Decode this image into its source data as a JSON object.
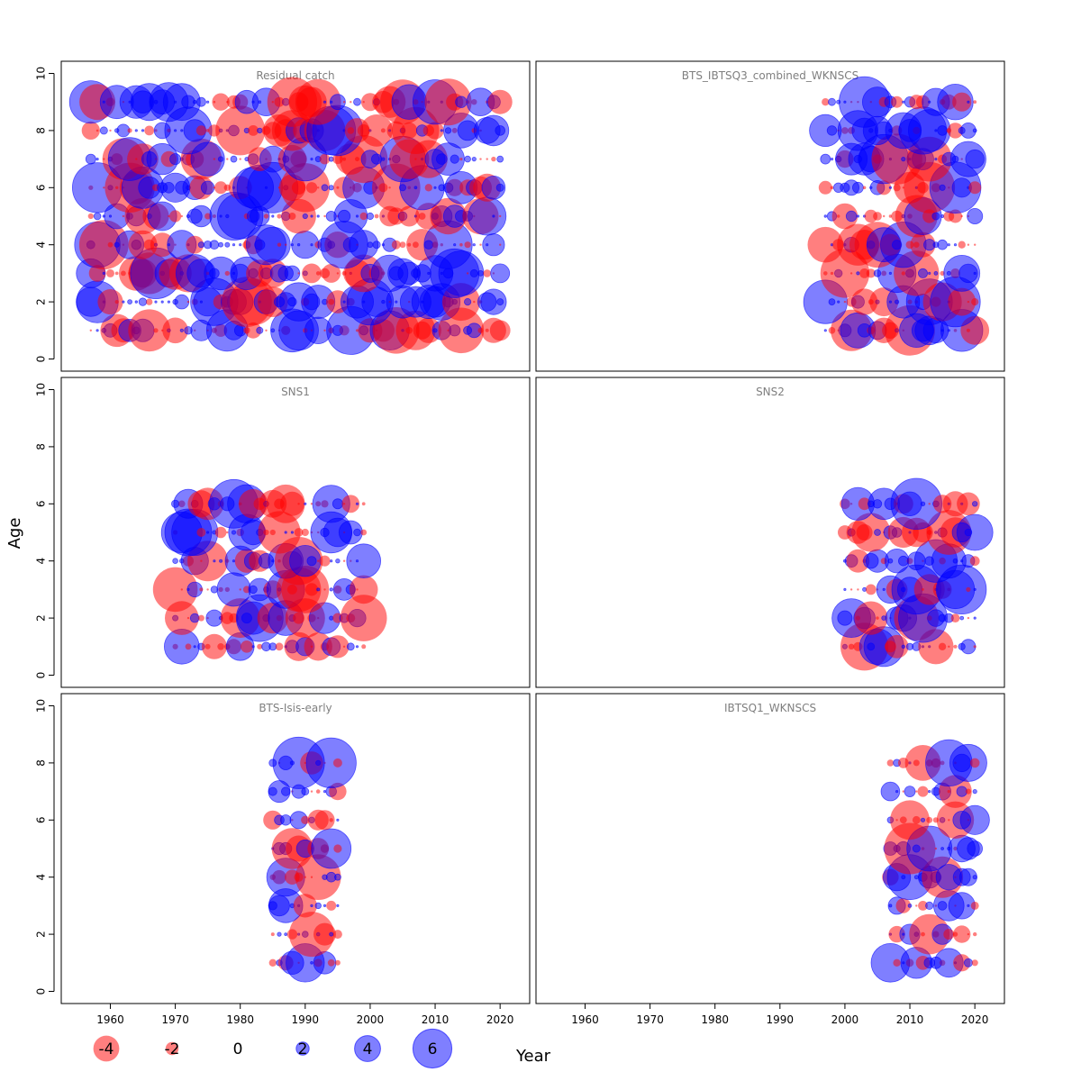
{
  "chart_data": {
    "type": "scatter",
    "subtype": "bubble-residuals",
    "xlabel": "Year",
    "ylabel": "Age",
    "xlim": [
      1953,
      2024
    ],
    "ylim": [
      -0.3,
      10.3
    ],
    "x_ticks": [
      1960,
      1970,
      1980,
      1990,
      2000,
      2010,
      2020
    ],
    "y_ticks": [
      0,
      2,
      4,
      6,
      8,
      10
    ],
    "colors": {
      "positive": "#0000ff",
      "negative": "#ff0000",
      "opacity": 0.5,
      "border": "#0000ff"
    },
    "legend": {
      "placement": "bottom",
      "entries": [
        {
          "label": "-4",
          "value": -4
        },
        {
          "label": "-2",
          "value": -2
        },
        {
          "label": "0",
          "value": 0
        },
        {
          "label": "2",
          "value": 2
        },
        {
          "label": "4",
          "value": 4
        },
        {
          "label": "6",
          "value": 6
        }
      ]
    },
    "panels": [
      {
        "title": "Residual catch",
        "years": [
          1957,
          2020
        ],
        "ages": [
          1,
          2,
          3,
          4,
          5,
          6,
          7,
          8,
          9
        ]
      },
      {
        "title": "BTS_IBTSQ3_combined_WKNSCS",
        "years": [
          1997,
          2020
        ],
        "ages": [
          1,
          2,
          3,
          4,
          5,
          6,
          7,
          8,
          9
        ]
      },
      {
        "title": "SNS1",
        "years": [
          1970,
          1999
        ],
        "ages": [
          1,
          2,
          3,
          4,
          5,
          6
        ]
      },
      {
        "title": "SNS2",
        "years": [
          2000,
          2020
        ],
        "ages": [
          1,
          2,
          3,
          4,
          5,
          6
        ]
      },
      {
        "title": "BTS-Isis-early",
        "years": [
          1985,
          1995
        ],
        "ages": [
          1,
          2,
          3,
          4,
          5,
          6,
          7,
          8
        ]
      },
      {
        "title": "IBTSQ1_WKNSCS",
        "years": [
          2007,
          2020
        ],
        "ages": [
          1,
          2,
          3,
          4,
          5,
          6,
          7,
          8
        ]
      }
    ]
  }
}
